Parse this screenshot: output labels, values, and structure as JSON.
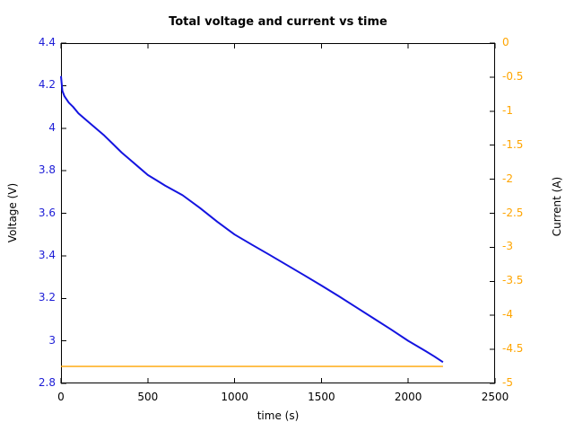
{
  "chart_data": {
    "type": "line",
    "title": "Total voltage and current vs time",
    "xlabel": "time (s)",
    "ylabel_left": "Voltage (V)",
    "ylabel_right": "Current (A)",
    "xlim": [
      0,
      2500
    ],
    "ylim_left": [
      2.8,
      4.4
    ],
    "ylim_right": [
      -5,
      0
    ],
    "grid": false,
    "legend": "none",
    "background_color": "#ffffff",
    "axis_color": "#000000",
    "xticks": {
      "values": [
        0,
        500,
        1000,
        1500,
        2000,
        2500
      ],
      "labels": [
        "0",
        "500",
        "1000",
        "1500",
        "2000",
        "2500"
      ],
      "color": "#000000"
    },
    "yticks_left": {
      "values": [
        2.8,
        3.0,
        3.2,
        3.4,
        3.6,
        3.8,
        4.0,
        4.2,
        4.4
      ],
      "labels": [
        "2.8",
        "3",
        "3.2",
        "3.4",
        "3.6",
        "3.8",
        "4",
        "4.2",
        "4.4"
      ],
      "color": "#1c1cd6"
    },
    "yticks_right": {
      "values": [
        0,
        -0.5,
        -1,
        -1.5,
        -2,
        -2.5,
        -3,
        -3.5,
        -4,
        -4.5,
        -5
      ],
      "labels": [
        "0",
        "-0.5",
        "-1",
        "-1.5",
        "-2",
        "-2.5",
        "-3",
        "-3.5",
        "-4",
        "-4.5",
        "-5"
      ],
      "color": "#ffa500"
    },
    "series": [
      {
        "name": "voltage",
        "axis": "left",
        "color": "#1414e0",
        "width": 2,
        "points": [
          [
            0,
            4.245
          ],
          [
            8,
            4.175
          ],
          [
            20,
            4.15
          ],
          [
            45,
            4.12
          ],
          [
            70,
            4.1
          ],
          [
            100,
            4.07
          ],
          [
            150,
            4.035
          ],
          [
            200,
            4.0
          ],
          [
            250,
            3.965
          ],
          [
            300,
            3.925
          ],
          [
            350,
            3.885
          ],
          [
            400,
            3.85
          ],
          [
            450,
            3.815
          ],
          [
            500,
            3.78
          ],
          [
            550,
            3.755
          ],
          [
            600,
            3.73
          ],
          [
            700,
            3.685
          ],
          [
            800,
            3.625
          ],
          [
            900,
            3.56
          ],
          [
            1000,
            3.5
          ],
          [
            1100,
            3.452
          ],
          [
            1200,
            3.405
          ],
          [
            1300,
            3.357
          ],
          [
            1400,
            3.309
          ],
          [
            1500,
            3.26
          ],
          [
            1600,
            3.21
          ],
          [
            1700,
            3.158
          ],
          [
            1800,
            3.106
          ],
          [
            1900,
            3.054
          ],
          [
            2000,
            3.0
          ],
          [
            2100,
            2.952
          ],
          [
            2150,
            2.927
          ],
          [
            2200,
            2.9
          ]
        ]
      },
      {
        "name": "current",
        "axis": "right",
        "color": "#ffa500",
        "width": 1.3,
        "points": [
          [
            0,
            -4.75
          ],
          [
            2200,
            -4.75
          ]
        ]
      }
    ]
  }
}
